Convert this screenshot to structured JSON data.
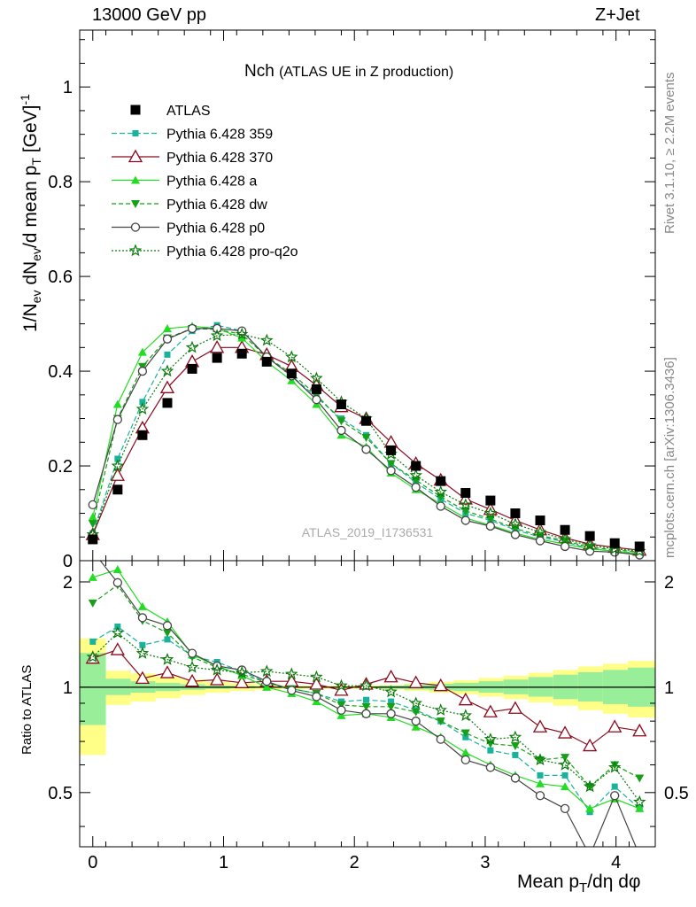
{
  "header": {
    "left": "13000 GeV pp",
    "right": "Z+Jet"
  },
  "side": {
    "rivet": "Rivet 3.1.10, ≥ 2.2M events",
    "mcplots": "mcplots.cern.ch [arXiv:1306.3436]"
  },
  "chart_data": {
    "type": "line",
    "title_main": "Nch",
    "title_sub": "(ATLAS UE in Z production)",
    "watermark": "ATLAS_2019_I1736531",
    "ylabel": "1/N_ev dN_ev/d mean p_T [GeV]^-1",
    "ratio_ylabel": "Ratio to ATLAS",
    "xlabel": "Mean p_T/dη dφ",
    "xlim": [
      -0.1,
      4.3
    ],
    "ylim": [
      0,
      1.12
    ],
    "ratio_ylim": [
      0.35,
      2.3
    ],
    "x_ticks": [
      0,
      1,
      2,
      3,
      4
    ],
    "y_ticks": [
      0,
      0.2,
      0.4,
      0.6,
      0.8,
      1
    ],
    "ratio_y_ticks": [
      0.5,
      1,
      2
    ],
    "x": [
      0,
      0.19,
      0.38,
      0.57,
      0.76,
      0.95,
      1.14,
      1.33,
      1.52,
      1.71,
      1.9,
      2.09,
      2.28,
      2.47,
      2.66,
      2.85,
      3.04,
      3.23,
      3.42,
      3.61,
      3.8,
      3.99,
      4.18
    ],
    "bins": [
      0.1,
      0.29,
      0.48,
      0.67,
      0.86,
      1.05,
      1.24,
      1.43,
      1.62,
      1.81,
      2.0,
      2.19,
      2.38,
      2.57,
      2.76,
      2.95,
      3.14,
      3.33,
      3.52,
      3.71,
      3.9,
      4.09,
      4.3
    ],
    "data": {
      "name": "ATLAS",
      "values": [
        0.045,
        0.15,
        0.265,
        0.333,
        0.405,
        0.428,
        0.437,
        0.42,
        0.395,
        0.362,
        0.33,
        0.295,
        0.233,
        0.2,
        0.168,
        0.143,
        0.127,
        0.1,
        0.085,
        0.065,
        0.052,
        0.037,
        0.03
      ]
    },
    "band_inner": [
      0.78,
      0.95,
      0.965,
      0.975,
      0.983,
      0.99,
      0.993,
      0.996,
      0.997,
      0.997,
      0.996,
      0.994,
      0.99,
      0.985,
      0.98,
      0.975,
      0.965,
      0.955,
      0.94,
      0.925,
      0.91,
      0.895,
      0.88
    ],
    "band_outer": [
      0.64,
      0.89,
      0.91,
      0.93,
      0.95,
      0.965,
      0.975,
      0.983,
      0.988,
      0.99,
      0.99,
      0.988,
      0.985,
      0.975,
      0.965,
      0.955,
      0.94,
      0.925,
      0.905,
      0.885,
      0.86,
      0.84,
      0.82
    ],
    "series": [
      {
        "name": "Pythia 6.428 359",
        "color": "#19b29b",
        "marker": "square",
        "dash": "6,3",
        "values": [
          0.058,
          0.215,
          0.335,
          0.435,
          0.485,
          0.497,
          0.485,
          0.43,
          0.39,
          0.345,
          0.3,
          0.265,
          0.205,
          0.165,
          0.13,
          0.1,
          0.085,
          0.065,
          0.05,
          0.04,
          0.025,
          0.02,
          0.015
        ],
        "ratio": [
          1.35,
          1.49,
          1.32,
          1.37,
          1.23,
          1.18,
          1.11,
          1.03,
          0.99,
          0.96,
          0.91,
          0.92,
          0.91,
          0.86,
          0.8,
          0.72,
          0.66,
          0.64,
          0.56,
          0.56,
          0.44,
          0.52,
          0.45
        ]
      },
      {
        "name": "Pythia 6.428 370",
        "color": "#8b0a1e",
        "marker": "triangle-open",
        "dash": "",
        "values": [
          0.055,
          0.18,
          0.28,
          0.365,
          0.42,
          0.45,
          0.45,
          0.435,
          0.41,
          0.37,
          0.325,
          0.3,
          0.25,
          0.205,
          0.17,
          0.13,
          0.108,
          0.085,
          0.065,
          0.048,
          0.035,
          0.028,
          0.022
        ],
        "ratio": [
          1.21,
          1.28,
          1.06,
          1.1,
          1.04,
          1.05,
          1.03,
          1.04,
          1.04,
          1.02,
          0.98,
          1.02,
          1.07,
          1.03,
          1.01,
          0.92,
          0.85,
          0.87,
          0.77,
          0.74,
          0.68,
          0.77,
          0.75
        ]
      },
      {
        "name": "Pythia 6.428 a",
        "color": "#22dd22",
        "marker": "triangle",
        "dash": "",
        "values": [
          0.092,
          0.33,
          0.44,
          0.49,
          0.495,
          0.49,
          0.47,
          0.42,
          0.38,
          0.33,
          0.265,
          0.24,
          0.185,
          0.15,
          0.12,
          0.09,
          0.075,
          0.058,
          0.045,
          0.035,
          0.025,
          0.02,
          0.015
        ],
        "ratio": [
          2.06,
          2.17,
          1.7,
          1.54,
          1.24,
          1.15,
          1.08,
          1.0,
          0.96,
          0.91,
          0.83,
          0.84,
          0.82,
          0.77,
          0.72,
          0.65,
          0.6,
          0.56,
          0.53,
          0.52,
          0.45,
          0.48,
          0.45
        ]
      },
      {
        "name": "Pythia 6.428 dw",
        "color": "#17a017",
        "marker": "triangle-down",
        "dash": "5,3",
        "values": [
          0.078,
          0.3,
          0.41,
          0.47,
          0.49,
          0.488,
          0.478,
          0.43,
          0.395,
          0.35,
          0.295,
          0.26,
          0.205,
          0.17,
          0.135,
          0.105,
          0.088,
          0.068,
          0.053,
          0.042,
          0.028,
          0.023,
          0.018
        ],
        "ratio": [
          1.74,
          1.96,
          1.55,
          1.43,
          1.22,
          1.14,
          1.09,
          1.03,
          0.99,
          0.96,
          0.89,
          0.88,
          0.88,
          0.85,
          0.8,
          0.74,
          0.69,
          0.68,
          0.62,
          0.63,
          0.52,
          0.6,
          0.55
        ]
      },
      {
        "name": "Pythia 6.428 p0",
        "color": "#444444",
        "marker": "circle-open",
        "dash": "",
        "values": [
          0.118,
          0.298,
          0.4,
          0.468,
          0.49,
          0.49,
          0.485,
          0.43,
          0.39,
          0.34,
          0.275,
          0.235,
          0.19,
          0.155,
          0.115,
          0.085,
          0.073,
          0.055,
          0.042,
          0.03,
          0.02,
          0.018,
          0.012
        ],
        "ratio": [
          2.45,
          1.99,
          1.58,
          1.5,
          1.25,
          1.15,
          1.12,
          1.04,
          0.98,
          0.94,
          0.86,
          0.84,
          0.84,
          0.8,
          0.71,
          0.62,
          0.59,
          0.55,
          0.49,
          0.45,
          0.33,
          0.49,
          0.33
        ]
      },
      {
        "name": "Pythia 6.428 pro-q2o",
        "color": "#0b7a0b",
        "marker": "star-open",
        "dash": "2,2",
        "values": [
          0.055,
          0.2,
          0.32,
          0.4,
          0.45,
          0.475,
          0.478,
          0.465,
          0.43,
          0.385,
          0.335,
          0.3,
          0.225,
          0.18,
          0.145,
          0.118,
          0.1,
          0.077,
          0.06,
          0.045,
          0.032,
          0.025,
          0.02
        ],
        "ratio": [
          1.22,
          1.43,
          1.25,
          1.2,
          1.14,
          1.12,
          1.1,
          1.11,
          1.09,
          1.07,
          1.01,
          1.01,
          0.97,
          0.9,
          0.86,
          0.83,
          0.71,
          0.72,
          0.62,
          0.6,
          0.52,
          0.59,
          0.47
        ]
      }
    ],
    "legend": {
      "placement": "top-left"
    },
    "grid": false
  }
}
